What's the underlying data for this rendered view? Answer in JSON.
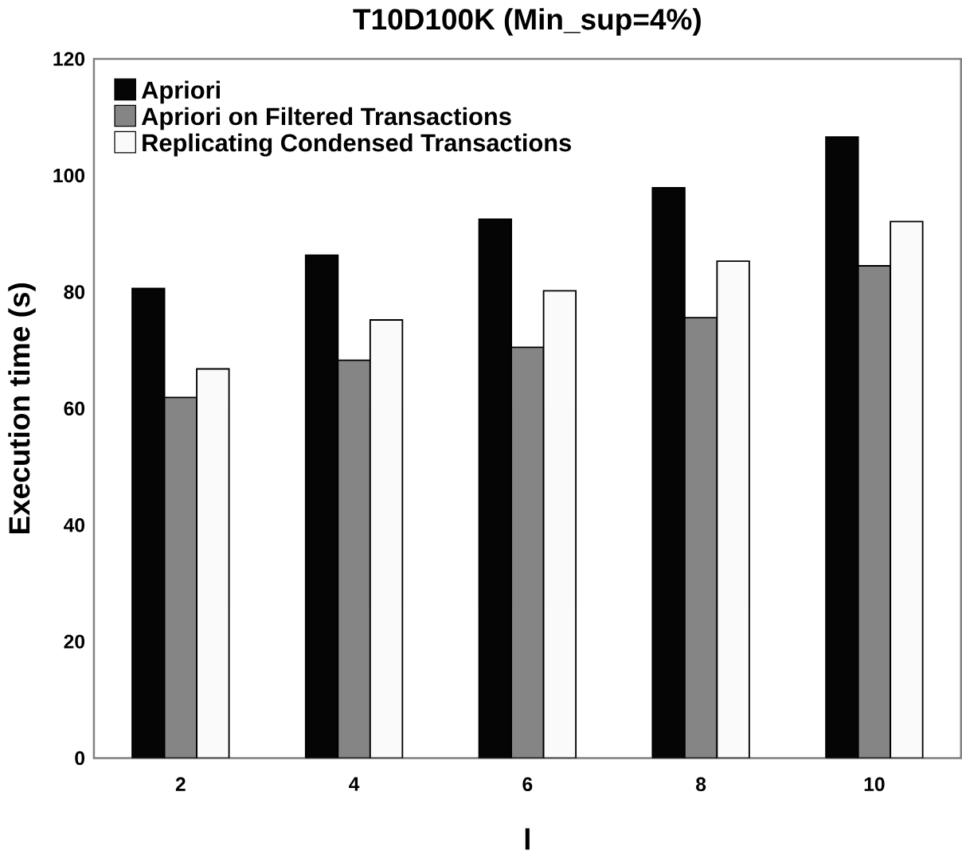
{
  "chart_data": {
    "type": "bar",
    "title": "T10D100K (Min_sup=4%)",
    "xlabel": "l",
    "ylabel": "Execution time (s)",
    "categories": [
      "2",
      "4",
      "6",
      "8",
      "10"
    ],
    "series": [
      {
        "name": "Apriori",
        "color": "#050505",
        "values": [
          80.6,
          86.3,
          92.5,
          97.9,
          106.6
        ]
      },
      {
        "name": "Apriori on Filtered Transactions",
        "color": "#858585",
        "values": [
          61.9,
          68.3,
          70.5,
          75.6,
          84.5
        ]
      },
      {
        "name": "Replicating Condensed Transactions",
        "color": "#fafafa",
        "values": [
          66.8,
          75.2,
          80.2,
          85.3,
          92.1
        ]
      }
    ],
    "ylim": [
      0,
      120
    ],
    "yticks": [
      0,
      20,
      40,
      60,
      80,
      100,
      120
    ],
    "grid": false,
    "legend": "top left"
  }
}
